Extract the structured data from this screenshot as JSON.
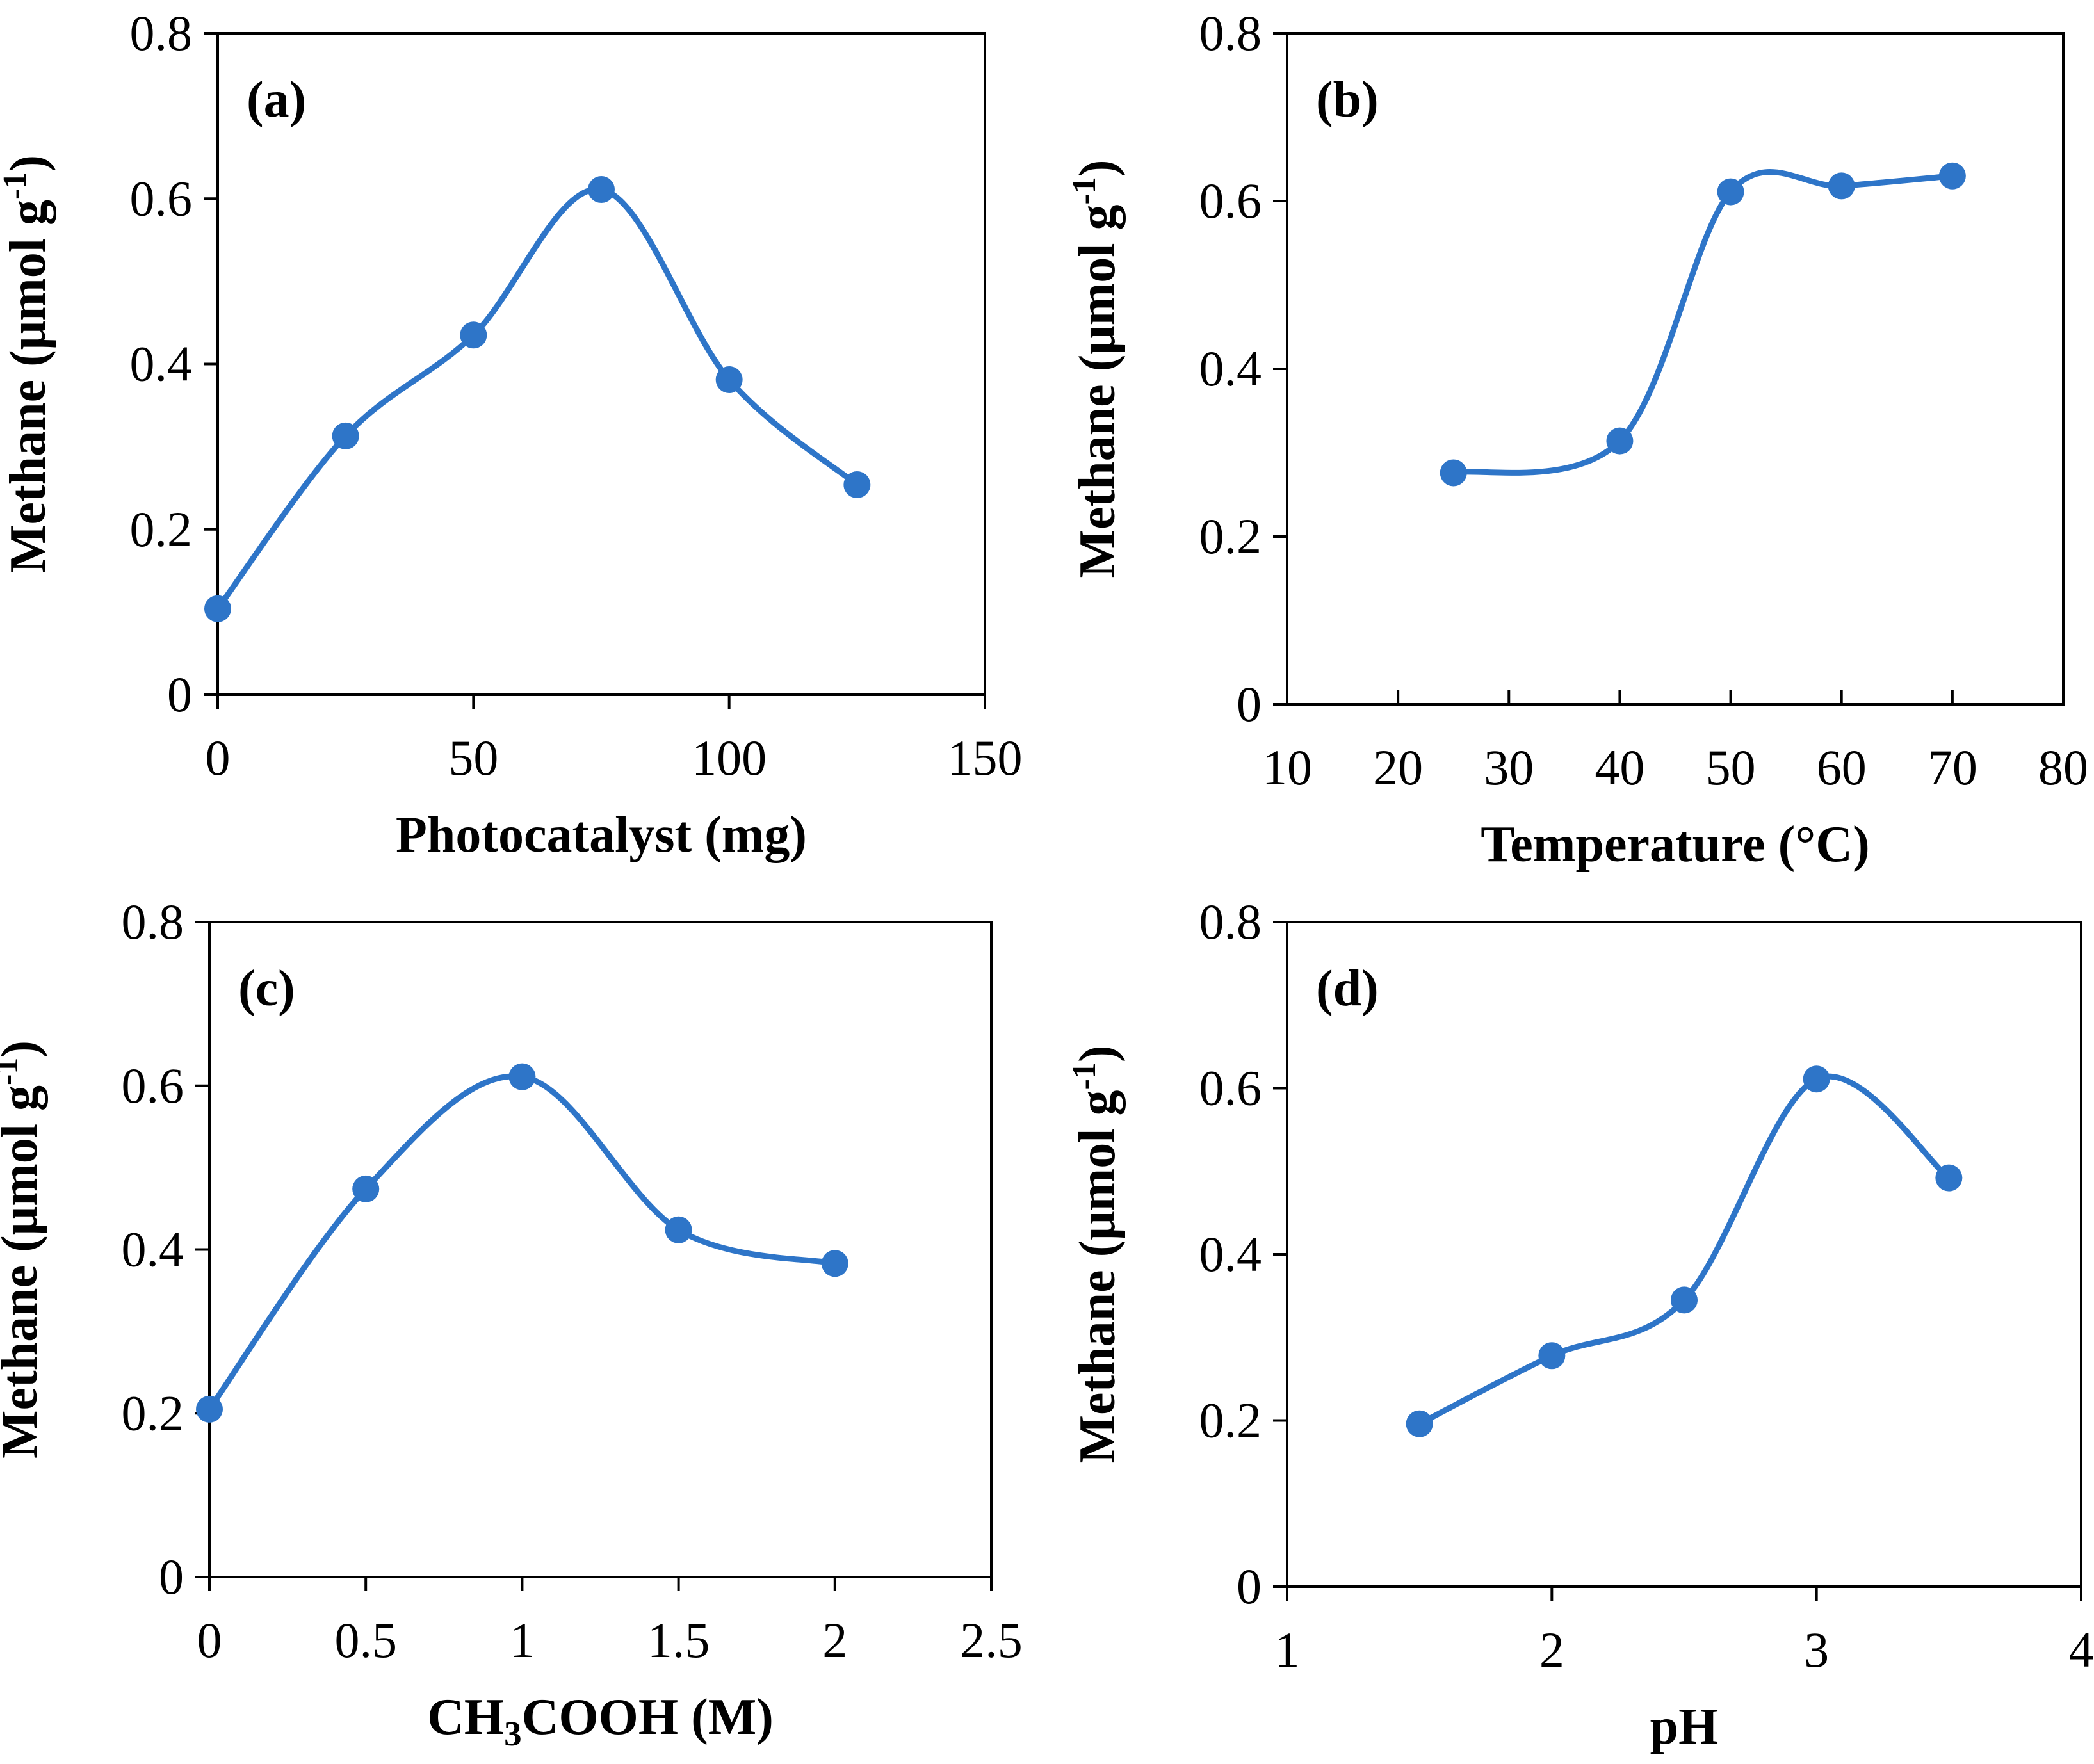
{
  "colors": {
    "series": "#2e75c8",
    "axis": "#000000"
  },
  "chart_data": [
    {
      "type": "line",
      "panel_label": "(a)",
      "xlabel": "Photocatalyst (mg)",
      "ylabel": "Methane (μmol g",
      "ylabel_sup": "-1",
      "ylabel_close": ")",
      "xlim": [
        0,
        150
      ],
      "ylim": [
        0,
        0.8
      ],
      "xticks": [
        "0",
        "50",
        "100",
        "150"
      ],
      "yticks": [
        "0",
        "0.2",
        "0.4",
        "0.6",
        "0.8"
      ],
      "x": [
        0,
        25,
        50,
        75,
        100,
        125
      ],
      "y": [
        0.104,
        0.313,
        0.435,
        0.611,
        0.381,
        0.254
      ]
    },
    {
      "type": "line",
      "panel_label": "(b)",
      "xlabel": "Temperature (°C)",
      "ylabel": "Methane (μmol g",
      "ylabel_sup": "-1",
      "ylabel_close": ")",
      "xlim": [
        10,
        80
      ],
      "ylim": [
        0,
        0.8
      ],
      "xticks": [
        "10",
        "20",
        "30",
        "40",
        "50",
        "60",
        "70",
        "80"
      ],
      "yticks": [
        "0",
        "0.2",
        "0.4",
        "0.6",
        "0.8"
      ],
      "x": [
        25,
        40,
        50,
        60,
        70
      ],
      "y": [
        0.276,
        0.314,
        0.611,
        0.618,
        0.63
      ]
    },
    {
      "type": "line",
      "panel_label": "(c)",
      "xlabel": "CH",
      "xlabel_sub": "3",
      "xlabel_rest": "COOH (M)",
      "ylabel": "Methane (μmol g",
      "ylabel_sup": "-1",
      "ylabel_close": ")",
      "xlim": [
        0,
        2.5
      ],
      "ylim": [
        0,
        0.8
      ],
      "xticks": [
        "0",
        "0.5",
        "1",
        "1.5",
        "2",
        "2.5"
      ],
      "yticks": [
        "0",
        "0.2",
        "0.4",
        "0.6",
        "0.8"
      ],
      "x": [
        0,
        0.5,
        1,
        1.5,
        2
      ],
      "y": [
        0.205,
        0.474,
        0.611,
        0.424,
        0.383
      ]
    },
    {
      "type": "line",
      "panel_label": "(d)",
      "xlabel": "pH",
      "ylabel": "Methane (μmol g",
      "ylabel_sup": "-1",
      "ylabel_close": ")",
      "xlim": [
        1,
        4
      ],
      "ylim": [
        0,
        0.8
      ],
      "xticks": [
        "1",
        "2",
        "3",
        "4"
      ],
      "yticks": [
        "0",
        "0.2",
        "0.4",
        "0.6",
        "0.8"
      ],
      "x": [
        1.5,
        2,
        2.5,
        3,
        3.5
      ],
      "y": [
        0.196,
        0.278,
        0.345,
        0.611,
        0.492
      ]
    }
  ]
}
